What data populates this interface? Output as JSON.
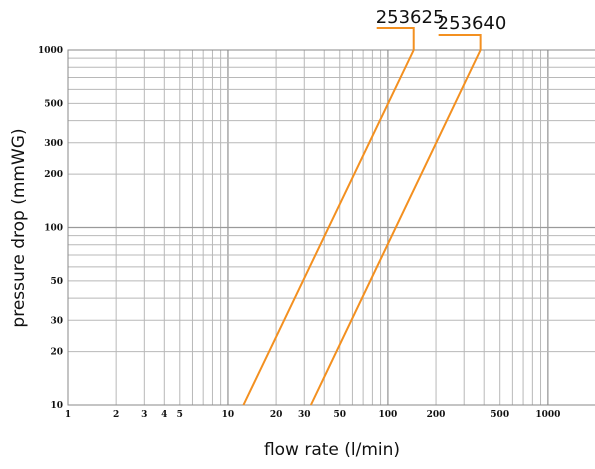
{
  "chart_data": {
    "type": "line",
    "title": "",
    "xlabel": "flow rate (l/min)",
    "ylabel": "pressure drop (mmWG)",
    "x_scale": "log",
    "y_scale": "log",
    "xlim": [
      1,
      2000
    ],
    "ylim": [
      10,
      1000
    ],
    "grid": true,
    "x_ticks": [
      {
        "value": 1,
        "label": "1"
      },
      {
        "value": 2,
        "label": "2"
      },
      {
        "value": 3,
        "label": "3"
      },
      {
        "value": 4,
        "label": "4"
      },
      {
        "value": 5,
        "label": "5"
      },
      {
        "value": 10,
        "label": "10"
      },
      {
        "value": 20,
        "label": "20"
      },
      {
        "value": 30,
        "label": "30"
      },
      {
        "value": 50,
        "label": "50"
      },
      {
        "value": 100,
        "label": "100"
      },
      {
        "value": 200,
        "label": "200"
      },
      {
        "value": 500,
        "label": "500"
      },
      {
        "value": 1000,
        "label": "1000"
      }
    ],
    "y_ticks": [
      {
        "value": 10,
        "label": "10"
      },
      {
        "value": 20,
        "label": "20"
      },
      {
        "value": 30,
        "label": "30"
      },
      {
        "value": 50,
        "label": "50"
      },
      {
        "value": 100,
        "label": "100"
      },
      {
        "value": 200,
        "label": "200"
      },
      {
        "value": 300,
        "label": "300"
      },
      {
        "value": 500,
        "label": "500"
      },
      {
        "value": 1000,
        "label": "1000"
      }
    ],
    "series": [
      {
        "name": "253625",
        "color": "#f39020",
        "points": [
          [
            12.5,
            10
          ],
          [
            145,
            1000
          ]
        ]
      },
      {
        "name": "253640",
        "color": "#f39020",
        "points": [
          [
            33,
            10
          ],
          [
            380,
            1000
          ]
        ]
      }
    ]
  }
}
